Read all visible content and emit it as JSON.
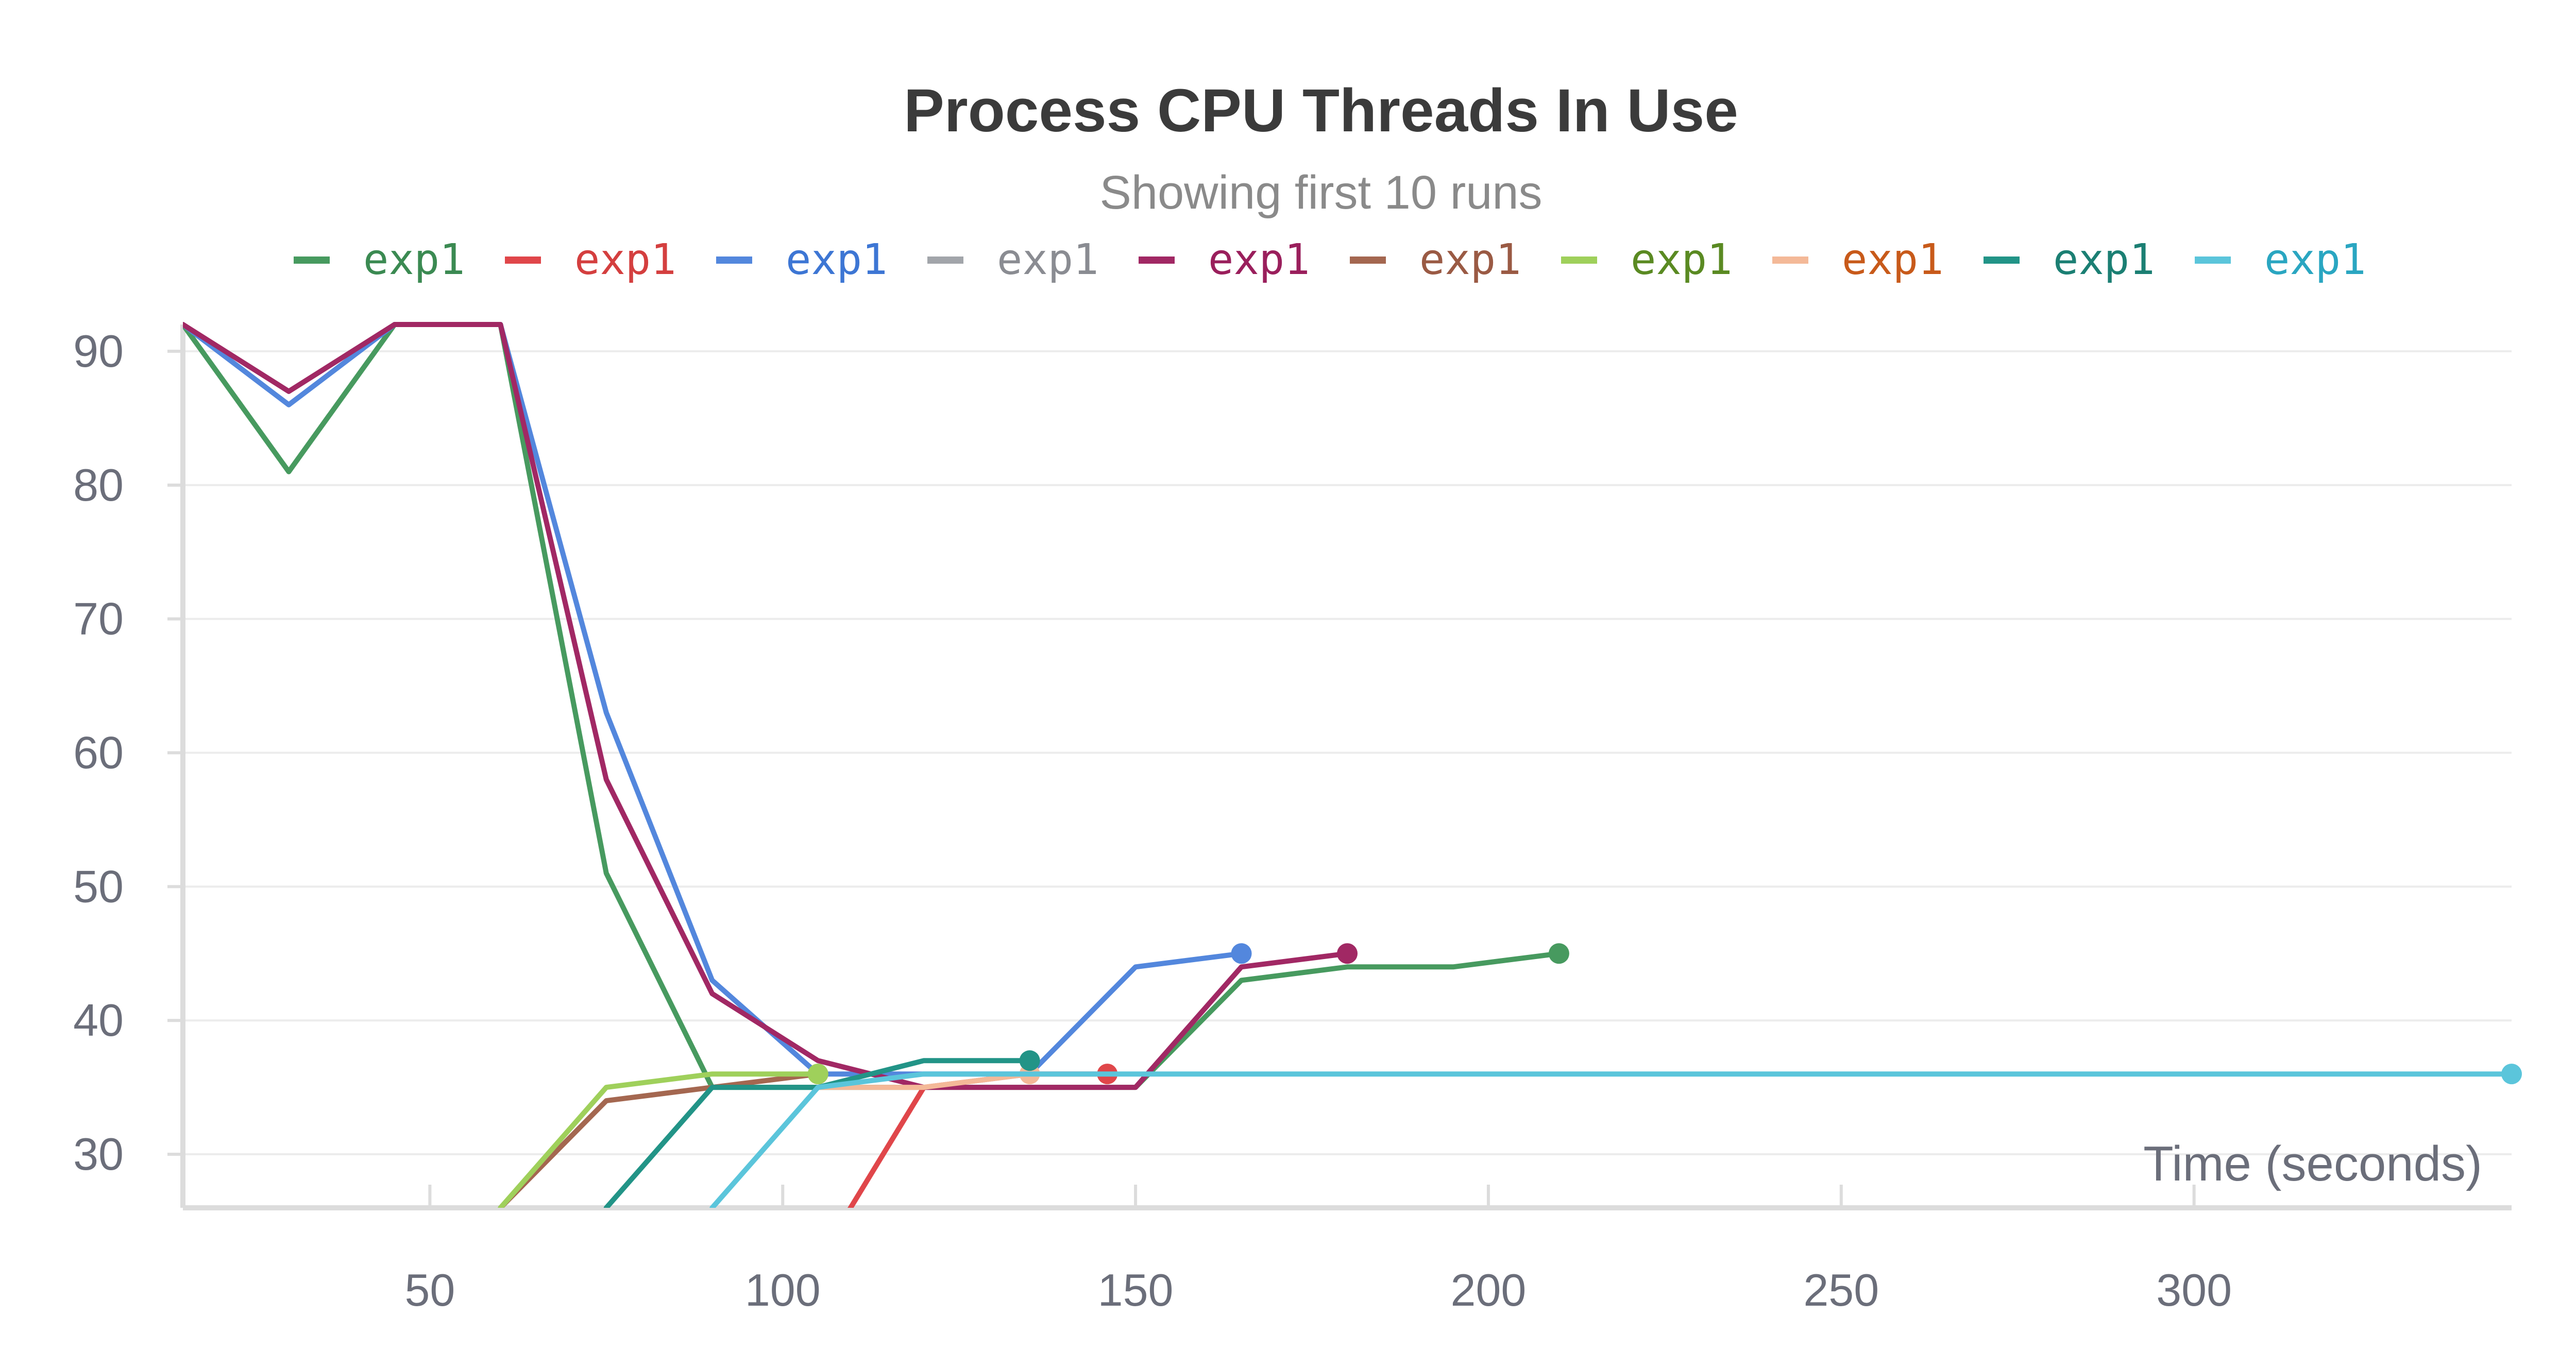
{
  "chart_data": {
    "type": "line",
    "title": "Process CPU Threads In Use",
    "subtitle": "Showing first 10 runs",
    "xlabel": "Time (seconds)",
    "ylabel": "",
    "xlim": [
      15,
      345
    ],
    "ylim": [
      26,
      92
    ],
    "x_ticks": [
      50,
      100,
      150,
      200,
      250,
      300
    ],
    "y_ticks": [
      30,
      40,
      50,
      60,
      70,
      80,
      90
    ],
    "grid": "horizontal",
    "legend_position": "top-center",
    "series": [
      {
        "name": "exp1",
        "color": "#479a5f",
        "label_color": "#3b8a52",
        "points": [
          [
            15,
            92
          ],
          [
            30,
            81
          ],
          [
            45,
            92
          ],
          [
            60,
            92
          ],
          [
            75,
            51
          ],
          [
            90,
            35
          ],
          [
            105,
            35
          ],
          [
            120,
            35
          ],
          [
            135,
            35
          ],
          [
            150,
            35
          ],
          [
            165,
            43
          ],
          [
            180,
            44
          ],
          [
            195,
            44
          ],
          [
            210,
            45
          ]
        ]
      },
      {
        "name": "exp1",
        "color": "#e0464a",
        "label_color": "#d43f3f",
        "points": [
          [
            105,
            22
          ],
          [
            120,
            35
          ],
          [
            135,
            36
          ],
          [
            146,
            36
          ]
        ]
      },
      {
        "name": "exp1",
        "color": "#5387dd",
        "label_color": "#3d76d4",
        "points": [
          [
            15,
            92
          ],
          [
            30,
            86
          ],
          [
            45,
            92
          ],
          [
            60,
            92
          ],
          [
            75,
            63
          ],
          [
            90,
            43
          ],
          [
            105,
            36
          ],
          [
            120,
            36
          ],
          [
            135,
            36
          ],
          [
            150,
            44
          ],
          [
            165,
            45
          ]
        ]
      },
      {
        "name": "exp1",
        "color": "#a2a5aa",
        "label_color": "#8a8c92",
        "points": []
      },
      {
        "name": "exp1",
        "color": "#a12864",
        "label_color": "#9a1f5c",
        "points": [
          [
            15,
            92
          ],
          [
            30,
            87
          ],
          [
            45,
            92
          ],
          [
            60,
            92
          ],
          [
            75,
            58
          ],
          [
            90,
            42
          ],
          [
            105,
            37
          ],
          [
            120,
            35
          ],
          [
            135,
            35
          ],
          [
            150,
            35
          ],
          [
            165,
            44
          ],
          [
            180,
            45
          ]
        ]
      },
      {
        "name": "exp1",
        "color": "#a46750",
        "label_color": "#9a5a44",
        "points": [
          [
            60,
            26
          ],
          [
            75,
            34
          ],
          [
            90,
            35
          ],
          [
            105,
            36
          ]
        ]
      },
      {
        "name": "exp1",
        "color": "#9fd05b",
        "label_color": "#5a8a22",
        "points": [
          [
            60,
            26
          ],
          [
            75,
            35
          ],
          [
            90,
            36
          ],
          [
            105,
            36
          ]
        ]
      },
      {
        "name": "exp1",
        "color": "#f4b998",
        "label_color": "#c85a1a",
        "points": [
          [
            105,
            35
          ],
          [
            120,
            35
          ],
          [
            135,
            36
          ]
        ]
      },
      {
        "name": "exp1",
        "color": "#229487",
        "label_color": "#1b7f73",
        "points": [
          [
            75,
            26
          ],
          [
            90,
            35
          ],
          [
            105,
            35
          ],
          [
            120,
            37
          ],
          [
            135,
            37
          ]
        ]
      },
      {
        "name": "exp1",
        "color": "#5bc5db",
        "label_color": "#2aa6c1",
        "points": [
          [
            90,
            26
          ],
          [
            105,
            35
          ],
          [
            120,
            36
          ],
          [
            135,
            36
          ],
          [
            345,
            36
          ]
        ]
      }
    ]
  }
}
